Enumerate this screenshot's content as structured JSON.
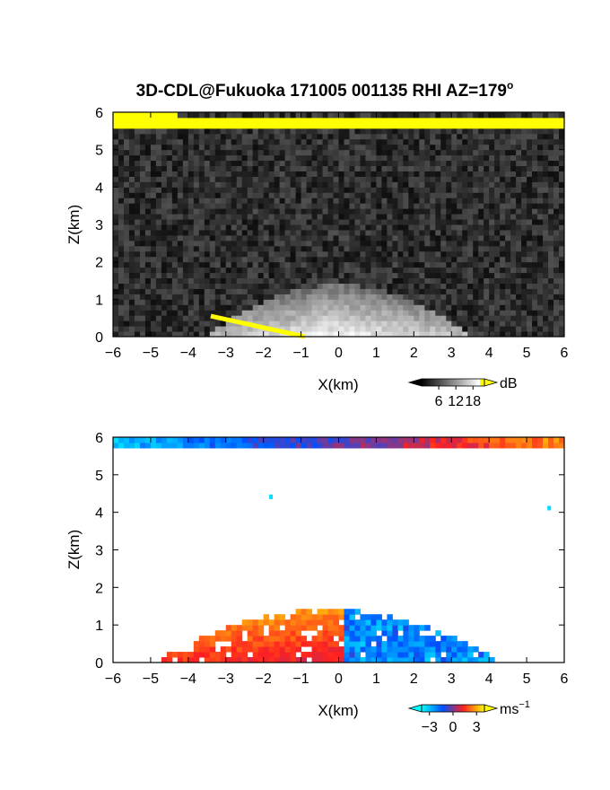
{
  "title": "3D-CDL@Fukuoka 171005 001135 RHI AZ=179",
  "title_superscript": "o",
  "chart_data": [
    {
      "type": "heatmap",
      "name": "backscatter",
      "xlabel": "X(km)",
      "ylabel": "Z(km)",
      "xlim": [
        -6,
        6
      ],
      "ylim": [
        0,
        6
      ],
      "xticks": [
        "-6",
        "-5",
        "-4",
        "-3",
        "-2",
        "-1",
        "0",
        "1",
        "2",
        "3",
        "4",
        "5",
        "6"
      ],
      "yticks": [
        "0",
        "1",
        "2",
        "3",
        "4",
        "5",
        "6"
      ],
      "colorbar": {
        "unit": "dB",
        "ticks": [
          "6",
          "12",
          "18"
        ],
        "range": [
          0,
          22
        ],
        "colors": [
          "#000000",
          "#ffffff",
          "#ffff00"
        ]
      },
      "features": [
        {
          "kind": "yellow_band",
          "x": [
            -6,
            6
          ],
          "z_top": [
            5.95,
            5.8
          ],
          "z_bottom": [
            5.6,
            5.5
          ]
        },
        {
          "kind": "bright_dome",
          "x_center": 0,
          "z_top": 1.4,
          "x_half_width": 3.5
        },
        {
          "kind": "yellow_ground_line",
          "x": [
            -3.4,
            -0.9
          ],
          "z": [
            0.55,
            0.0
          ]
        }
      ]
    },
    {
      "type": "heatmap",
      "name": "doppler_velocity",
      "xlabel": "X(km)",
      "ylabel": "Z(km)",
      "xlim": [
        -6,
        6
      ],
      "ylim": [
        0,
        6
      ],
      "xticks": [
        "-6",
        "-5",
        "-4",
        "-3",
        "-2",
        "-1",
        "0",
        "1",
        "2",
        "3",
        "4",
        "5",
        "6"
      ],
      "yticks": [
        "0",
        "1",
        "2",
        "3",
        "4",
        "5",
        "6"
      ],
      "colorbar": {
        "unit": "ms",
        "unit_sup": "-1",
        "ticks": [
          "-3",
          "0",
          "3"
        ],
        "range": [
          -4,
          4
        ],
        "colors": [
          "#00ffff",
          "#0050ff",
          "#ff2020",
          "#ffff00"
        ]
      },
      "features": [
        {
          "kind": "top_band",
          "x": [
            -6,
            6
          ],
          "z_top": 6.0,
          "z_bottom": 5.65,
          "velocity_west": -3,
          "velocity_east": 2.5
        },
        {
          "kind": "low_layer",
          "x": [
            -4.9,
            4.3
          ],
          "z_top": 1.4,
          "velocity_west": 1.5,
          "velocity_east": -2.5
        },
        {
          "kind": "isolated_point",
          "x": -1.8,
          "z": 4.4,
          "velocity": -3.5
        },
        {
          "kind": "isolated_point",
          "x": 5.6,
          "z": 4.1,
          "velocity": -3.5
        }
      ]
    }
  ]
}
